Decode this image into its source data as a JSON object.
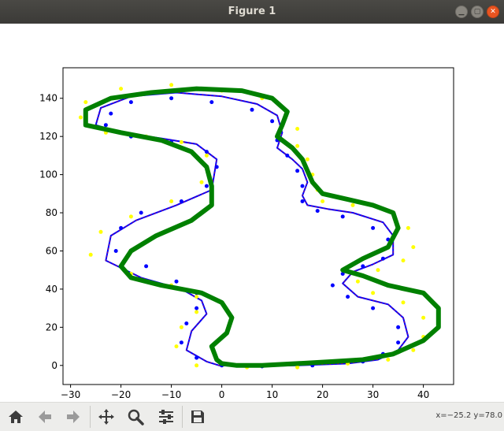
{
  "window": {
    "title": "Figure 1"
  },
  "toolbar": {
    "icons": [
      "home-icon",
      "back-arrow-icon",
      "forward-arrow-icon",
      "pan-icon",
      "zoom-icon",
      "configure-subplots-icon",
      "save-icon"
    ],
    "coordinates": "x=−25.2 y=78.0"
  },
  "colors": {
    "blue": "#0000ff",
    "yellow": "#ffff00",
    "green": "#008000",
    "red": "#ff0000"
  },
  "chart_data": {
    "type": "scatter",
    "xlim": [
      -31.5,
      46
    ],
    "ylim": [
      -10,
      156
    ],
    "xticks": [
      -30,
      -20,
      -10,
      0,
      10,
      20,
      30,
      40
    ],
    "yticks": [
      0,
      20,
      40,
      60,
      80,
      100,
      120,
      140
    ],
    "xtick_labels": [
      "−30",
      "−20",
      "−10",
      "0",
      "10",
      "20",
      "30",
      "40"
    ],
    "ytick_labels": [
      "0",
      "20",
      "40",
      "60",
      "80",
      "100",
      "120",
      "140"
    ],
    "grid": false,
    "series": [
      {
        "color": "#0000ff",
        "style": "line",
        "points": [
          [
            -0.5,
            0
          ],
          [
            5,
            -0.5
          ],
          [
            15,
            0
          ],
          [
            25,
            1
          ],
          [
            31,
            3
          ],
          [
            35,
            8
          ],
          [
            37,
            15
          ],
          [
            36,
            25
          ],
          [
            33,
            32
          ],
          [
            27,
            36
          ],
          [
            24,
            43
          ],
          [
            26,
            49
          ],
          [
            30,
            53
          ],
          [
            34,
            58
          ],
          [
            34,
            68
          ],
          [
            32,
            75
          ],
          [
            26,
            80
          ],
          [
            21,
            82
          ],
          [
            17,
            84
          ],
          [
            16,
            89
          ],
          [
            17,
            96
          ],
          [
            16,
            103
          ],
          [
            14,
            108
          ],
          [
            11,
            114
          ],
          [
            12,
            122
          ],
          [
            11,
            131
          ],
          [
            7,
            137
          ],
          [
            0,
            141
          ],
          [
            -9,
            143
          ],
          [
            -18,
            141
          ],
          [
            -24,
            135
          ],
          [
            -25,
            126
          ],
          [
            -20,
            122
          ],
          [
            -12,
            119
          ],
          [
            -5,
            116
          ],
          [
            -1,
            108
          ],
          [
            -2,
            92
          ],
          [
            -9,
            84
          ],
          [
            -17,
            76
          ],
          [
            -22,
            68
          ],
          [
            -23,
            55
          ],
          [
            -16,
            46
          ],
          [
            -8,
            40
          ],
          [
            -4,
            34
          ],
          [
            -3,
            27
          ],
          [
            -6,
            18
          ],
          [
            -7,
            8
          ],
          [
            -3,
            2
          ],
          [
            -0.5,
            0
          ]
        ]
      },
      {
        "color": "#ffff00",
        "style": "dots",
        "points": [
          [
            -5,
            0
          ],
          [
            5,
            -1
          ],
          [
            15,
            -1
          ],
          [
            25,
            1
          ],
          [
            33,
            3
          ],
          [
            38,
            8
          ],
          [
            40,
            15
          ],
          [
            40,
            25
          ],
          [
            36,
            33
          ],
          [
            30,
            38
          ],
          [
            27,
            44
          ],
          [
            31,
            50
          ],
          [
            36,
            55
          ],
          [
            38,
            62
          ],
          [
            37,
            72
          ],
          [
            34,
            80
          ],
          [
            26,
            84
          ],
          [
            20,
            86
          ],
          [
            19,
            92
          ],
          [
            18,
            100
          ],
          [
            17,
            108
          ],
          [
            15,
            115
          ],
          [
            15,
            124
          ],
          [
            13,
            133
          ],
          [
            8,
            140
          ],
          [
            0,
            144
          ],
          [
            -10,
            147
          ],
          [
            -20,
            145
          ],
          [
            -27,
            138
          ],
          [
            -28,
            130
          ],
          [
            -23,
            122
          ],
          [
            -15,
            120
          ],
          [
            -8,
            117
          ],
          [
            -3,
            110
          ],
          [
            -4,
            96
          ],
          [
            -10,
            86
          ],
          [
            -18,
            78
          ],
          [
            -24,
            70
          ],
          [
            -26,
            58
          ],
          [
            -18,
            48
          ],
          [
            -10,
            42
          ],
          [
            -5,
            36
          ],
          [
            -5,
            28
          ],
          [
            -8,
            20
          ],
          [
            -9,
            10
          ]
        ]
      },
      {
        "color": "#0000ff",
        "style": "dots",
        "points": [
          [
            0,
            0
          ],
          [
            8,
            -0.5
          ],
          [
            18,
            0
          ],
          [
            28,
            2
          ],
          [
            32,
            6
          ],
          [
            35,
            12
          ],
          [
            35,
            20
          ],
          [
            30,
            30
          ],
          [
            25,
            36
          ],
          [
            22,
            42
          ],
          [
            24,
            48
          ],
          [
            28,
            52
          ],
          [
            32,
            56
          ],
          [
            33,
            66
          ],
          [
            30,
            72
          ],
          [
            24,
            78
          ],
          [
            19,
            81
          ],
          [
            16,
            86
          ],
          [
            16,
            94
          ],
          [
            15,
            102
          ],
          [
            13,
            110
          ],
          [
            11,
            118
          ],
          [
            10,
            128
          ],
          [
            6,
            134
          ],
          [
            -2,
            138
          ],
          [
            -10,
            140
          ],
          [
            -18,
            138
          ],
          [
            -22,
            132
          ],
          [
            -23,
            126
          ],
          [
            -18,
            120
          ],
          [
            -10,
            117
          ],
          [
            -3,
            112
          ],
          [
            -1,
            104
          ],
          [
            -3,
            94
          ],
          [
            -8,
            86
          ],
          [
            -16,
            80
          ],
          [
            -20,
            72
          ],
          [
            -21,
            60
          ],
          [
            -15,
            52
          ],
          [
            -9,
            44
          ],
          [
            -5,
            38
          ],
          [
            -5,
            30
          ],
          [
            -7,
            22
          ],
          [
            -8,
            12
          ],
          [
            -5,
            4
          ]
        ]
      },
      {
        "color": "#008000",
        "style": "line",
        "points": [
          [
            28,
            47
          ],
          [
            33,
            42
          ],
          [
            40,
            38
          ],
          [
            43,
            30
          ],
          [
            43,
            20
          ],
          [
            40,
            13
          ],
          [
            34,
            6
          ],
          [
            28,
            3
          ],
          [
            22,
            2
          ],
          [
            15,
            1
          ],
          [
            8,
            0
          ],
          [
            3,
            0
          ],
          [
            0,
            1
          ],
          [
            -1,
            3
          ],
          [
            -2,
            10
          ],
          [
            1,
            17
          ],
          [
            2,
            25
          ],
          [
            0,
            33
          ],
          [
            -4,
            38
          ],
          [
            -12,
            42
          ],
          [
            -18,
            46
          ],
          [
            -20,
            52
          ],
          [
            -18,
            60
          ],
          [
            -13,
            68
          ],
          [
            -6,
            76
          ],
          [
            -2,
            84
          ],
          [
            -2,
            94
          ],
          [
            -3,
            104
          ],
          [
            -6,
            112
          ],
          [
            -12,
            118
          ],
          [
            -20,
            122
          ],
          [
            -27,
            126
          ],
          [
            -27,
            134
          ],
          [
            -22,
            140
          ],
          [
            -14,
            143
          ],
          [
            -5,
            145
          ],
          [
            4,
            144
          ],
          [
            10,
            140
          ],
          [
            13,
            133
          ],
          [
            12,
            126
          ],
          [
            11,
            120
          ],
          [
            14,
            114
          ],
          [
            16,
            108
          ],
          [
            17,
            102
          ],
          [
            18,
            96
          ],
          [
            20,
            90
          ],
          [
            25,
            87
          ],
          [
            30,
            84
          ],
          [
            34,
            80
          ],
          [
            35,
            72
          ],
          [
            33,
            62
          ],
          [
            28,
            56
          ],
          [
            24,
            50
          ],
          [
            28,
            47
          ]
        ]
      }
    ]
  }
}
